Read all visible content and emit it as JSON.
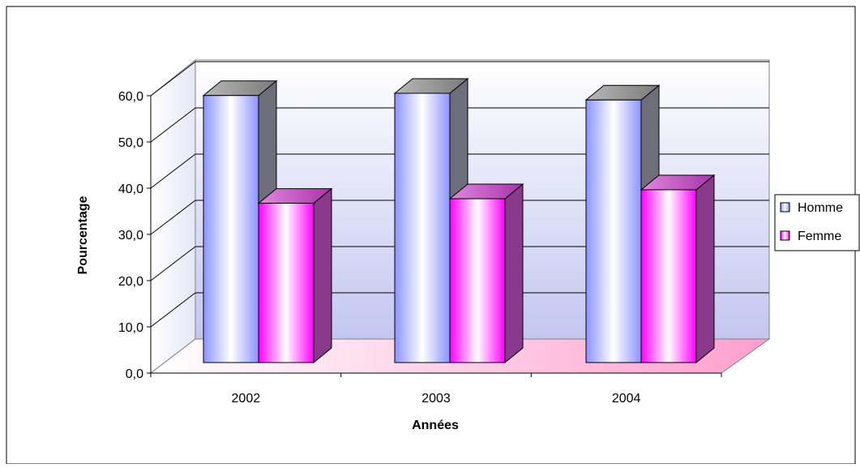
{
  "chart_data": {
    "type": "bar",
    "title": "",
    "xlabel": "Années",
    "ylabel": "Pourcentage",
    "categories": [
      "2002",
      "2003",
      "2004"
    ],
    "series": [
      {
        "name": "Homme",
        "values": [
          59.5,
          60.0,
          58.5
        ],
        "color": "#b7bcff"
      },
      {
        "name": "Femme",
        "values": [
          35.5,
          36.5,
          38.5
        ],
        "color": "#ff33ff"
      }
    ],
    "yticks": [
      "0,0",
      "10,0",
      "20,0",
      "30,0",
      "40,0",
      "50,0",
      "60,0"
    ],
    "ylim": [
      0,
      60
    ],
    "grid": true,
    "legend_position": "right",
    "view": "3d-clustered-column"
  }
}
